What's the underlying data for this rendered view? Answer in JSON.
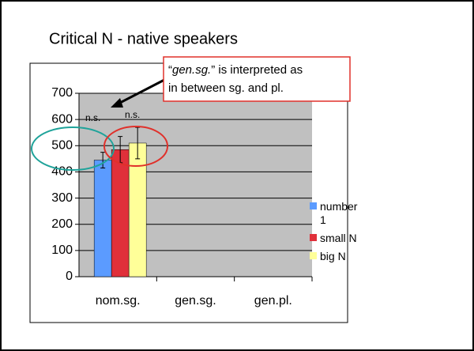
{
  "chart_data": {
    "type": "bar",
    "title": "Critical N - native speakers",
    "categories": [
      "nom.sg.",
      "gen.sg.",
      "gen.pl."
    ],
    "series": [
      {
        "name": "number 1",
        "color": "#5b9bff",
        "values": [
          445,
          null,
          null
        ],
        "errors": [
          30,
          null,
          null
        ]
      },
      {
        "name": "small N",
        "color": "#e0303a",
        "values": [
          485,
          null,
          null
        ],
        "errors": [
          50,
          null,
          null
        ]
      },
      {
        "name": "big N",
        "color": "#ffff99",
        "values": [
          510,
          null,
          null
        ],
        "errors": [
          60,
          null,
          null
        ]
      }
    ],
    "ylim": [
      0,
      700
    ],
    "yticks": [
      0,
      100,
      200,
      300,
      400,
      500,
      600,
      700
    ],
    "grid": true,
    "annotations": [
      "n.s.",
      "n.s."
    ],
    "callout": [
      "“",
      "gen.sg.",
      "” is interpreted as",
      "in between sg. and pl."
    ]
  }
}
